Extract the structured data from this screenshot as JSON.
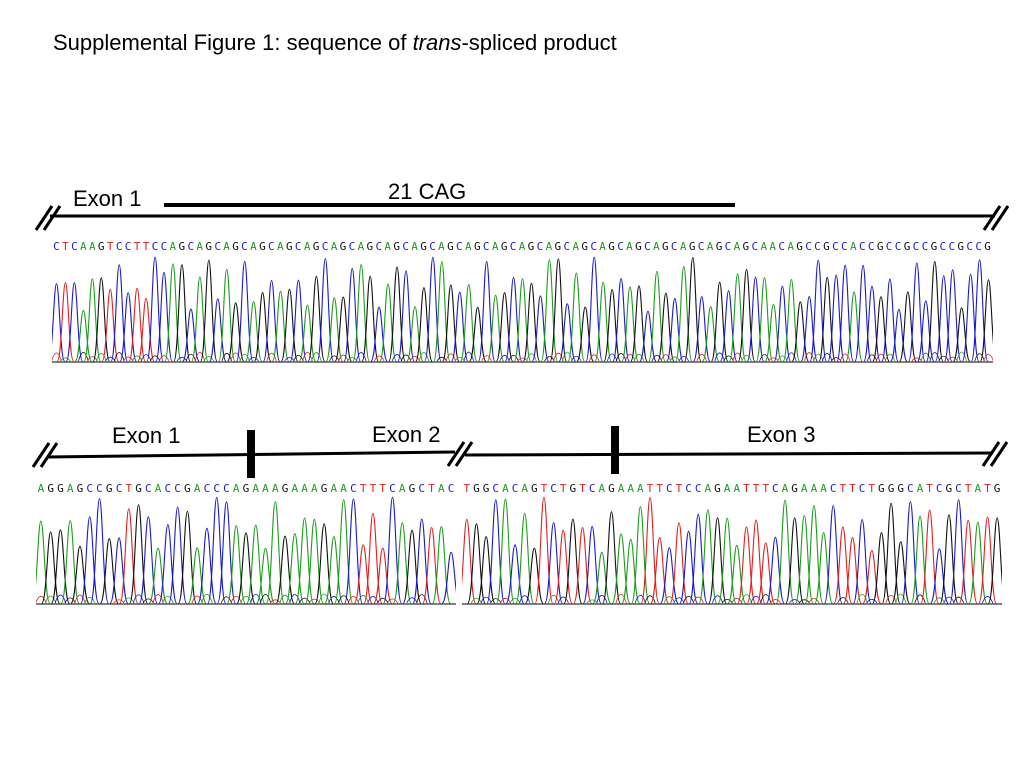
{
  "title": {
    "prefix": "Supplemental Figure 1: sequence of ",
    "italic": "trans",
    "suffix": "-spliced product"
  },
  "panel1": {
    "label_exon1": "Exon 1",
    "label_cag": "21 CAG",
    "sequence": "CTCAAGTCCTTCCAGCAGCAGCAGCAGCAGCAGCAGCAGCAGCAGCAGCAGCAGCAGCAGCAGCAGCAGCAGCAGCAGCAACAGCCGCCACCGCCGCCGCCGCCG"
  },
  "panel2": {
    "label_exon1": "Exon 1",
    "label_exon2": "Exon 2",
    "label_exon3": "Exon 3",
    "sequence_left": "AGGAGCCGCTGCACCGACCCAGAAAGAAAGAACTTTCAGCTAC",
    "sequence_right": "TGGCACAGTCTGTCAGAAATTCTCCAGAATTTCAGAAACTTCTGGGCATCGCTATG"
  },
  "base_colors": {
    "A": "#1a9e1a",
    "C": "#1a1acc",
    "G": "#111111",
    "T": "#e02020"
  }
}
